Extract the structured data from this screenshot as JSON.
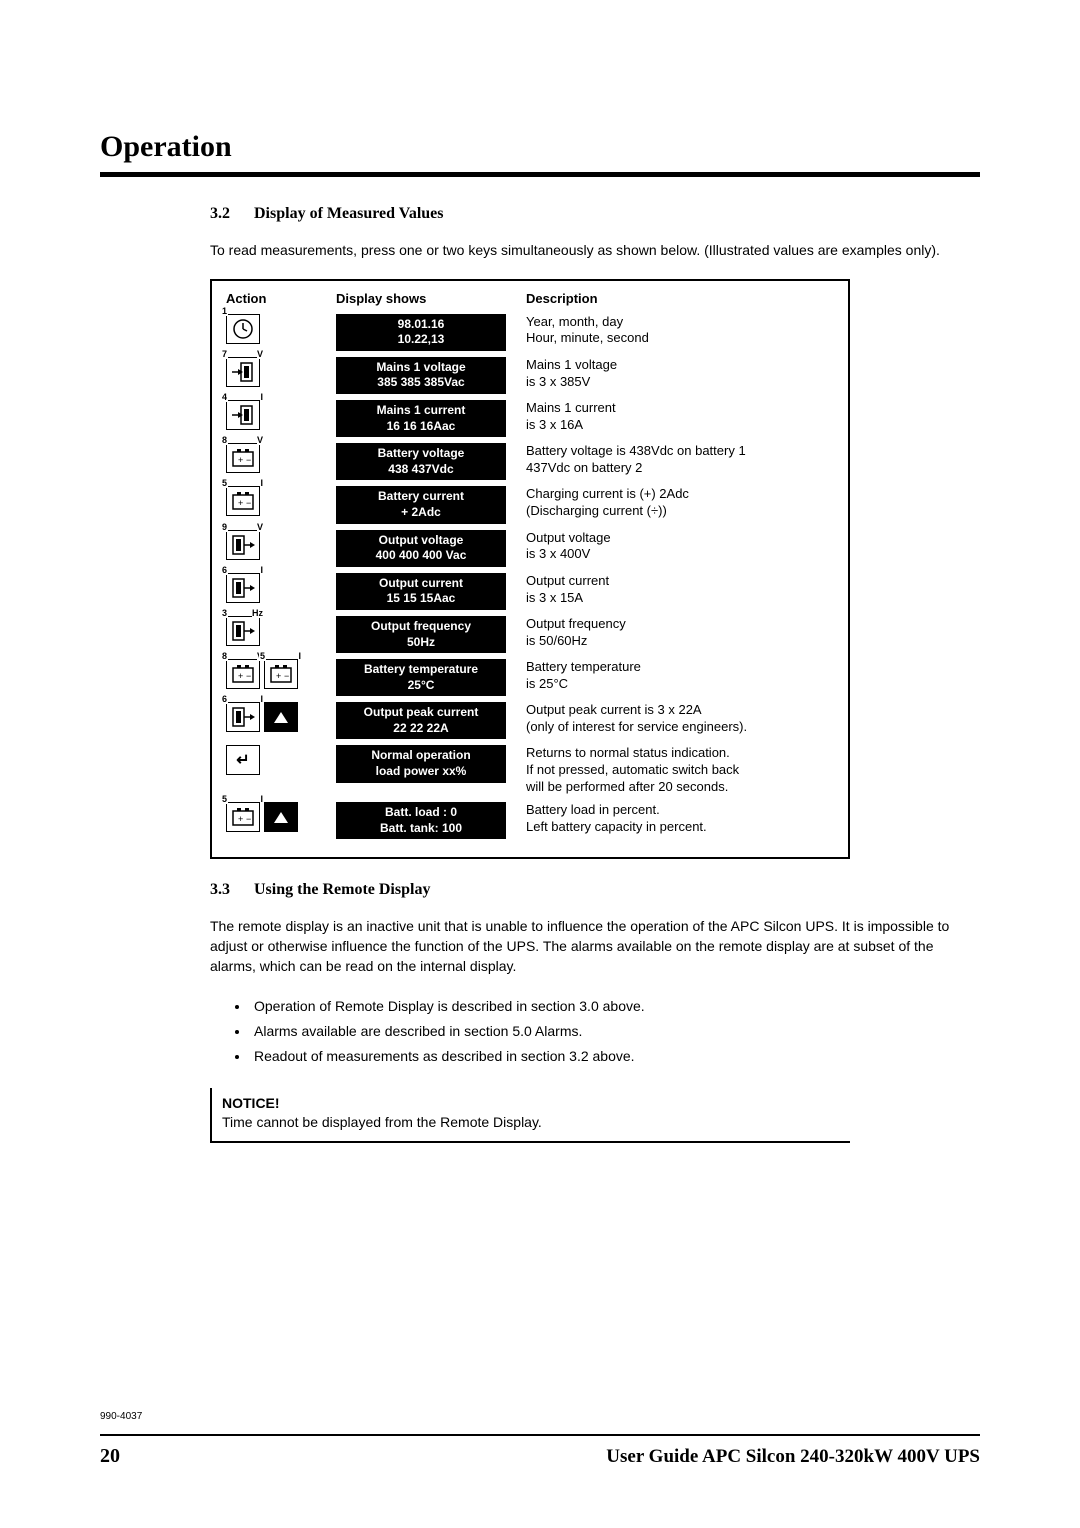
{
  "section_title": "Operation",
  "sub32": {
    "num": "3.2",
    "title": "Display of Measured Values"
  },
  "intro32": "To read measurements, press one or two keys simultaneously as shown below. (Illustrated values are examples only).",
  "table_head": {
    "action": "Action",
    "display": "Display shows",
    "desc": "Description"
  },
  "rows": [
    {
      "icons": [
        {
          "type": "clock",
          "n": "1"
        }
      ],
      "l1": "98.01.16",
      "l2": "10.22,13",
      "d1": "Year, month, day",
      "d2": "Hour, minute, second"
    },
    {
      "icons": [
        {
          "type": "inV",
          "n": "7",
          "u": "V"
        }
      ],
      "l1": "Mains 1 voltage",
      "l2": "385 385 385Vac",
      "d1": "Mains 1 voltage",
      "d2": "is 3 x 385V"
    },
    {
      "icons": [
        {
          "type": "inI",
          "n": "4",
          "u": "I"
        }
      ],
      "l1": "Mains 1 current",
      "l2": "16 16 16Aac",
      "d1": "Mains 1 current",
      "d2": "is 3 x 16A"
    },
    {
      "icons": [
        {
          "type": "batV",
          "n": "8",
          "u": "V"
        }
      ],
      "l1": "Battery voltage",
      "l2": "438 437Vdc",
      "d1": "Battery voltage is 438Vdc on battery 1",
      "d2": "437Vdc on battery 2"
    },
    {
      "icons": [
        {
          "type": "batI",
          "n": "5",
          "u": "I"
        }
      ],
      "l1": "Battery current",
      "l2": "+ 2Adc",
      "d1": "Charging current is (+) 2Adc",
      "d2": "(Discharging current (÷))"
    },
    {
      "icons": [
        {
          "type": "outV",
          "n": "9",
          "u": "V"
        }
      ],
      "l1": "Output voltage",
      "l2": "400 400 400 Vac",
      "d1": "Output voltage",
      "d2": "is 3 x 400V"
    },
    {
      "icons": [
        {
          "type": "outI",
          "n": "6",
          "u": "I"
        }
      ],
      "l1": "Output current",
      "l2": "15 15 15Aac",
      "d1": "Output current",
      "d2": "is 3 x 15A"
    },
    {
      "icons": [
        {
          "type": "outHz",
          "n": "3",
          "u": "Hz"
        }
      ],
      "l1": "Output frequency",
      "l2": "50Hz",
      "d1": "Output frequency",
      "d2": "is 50/60Hz"
    },
    {
      "icons": [
        {
          "type": "batV",
          "n": "8",
          "u": "V"
        },
        {
          "type": "batI",
          "n": "5",
          "u": "I"
        }
      ],
      "l1": "Battery temperature",
      "l2": "25°C",
      "d1": "Battery temperature",
      "d2": "is 25°C"
    },
    {
      "icons": [
        {
          "type": "outI",
          "n": "6",
          "u": "I"
        },
        {
          "type": "up"
        }
      ],
      "l1": "Output peak current",
      "l2": "22 22 22A",
      "d1": "Output peak current is 3 x 22A",
      "d2": "(only of interest for service engineers)."
    },
    {
      "icons": [
        {
          "type": "enter"
        }
      ],
      "l1": "Normal operation",
      "l2": "load power xx%",
      "d1": "Returns to normal status indication.",
      "d2": "If not pressed, automatic switch back",
      "d3": "will be performed after 20 seconds."
    },
    {
      "icons": [
        {
          "type": "batI",
          "n": "5",
          "u": "I"
        },
        {
          "type": "up"
        }
      ],
      "l1": "Batt. load : 0",
      "l2": "Batt. tank:  100",
      "d1": "Battery load in percent.",
      "d2": "Left battery capacity in percent."
    }
  ],
  "sub33": {
    "num": "3.3",
    "title": "Using the Remote Display"
  },
  "intro33": "The remote display is an inactive unit that is unable to influence the operation of the APC Silcon UPS. It is impossible to adjust or otherwise influence the function of the UPS. The alarms available on the remote display are at subset of the alarms, which can be read on the internal display.",
  "bullets": [
    "Operation of Remote Display is described in section 3.0 above.",
    "Alarms available are described in section 5.0 Alarms.",
    "Readout of measurements as described in section 3.2 above."
  ],
  "notice": {
    "label": "NOTICE!",
    "text": "Time cannot be displayed from the Remote Display."
  },
  "docnum": "990-4037",
  "page_num": "20",
  "footer_title": "User Guide APC Silcon 240-320kW 400V UPS"
}
